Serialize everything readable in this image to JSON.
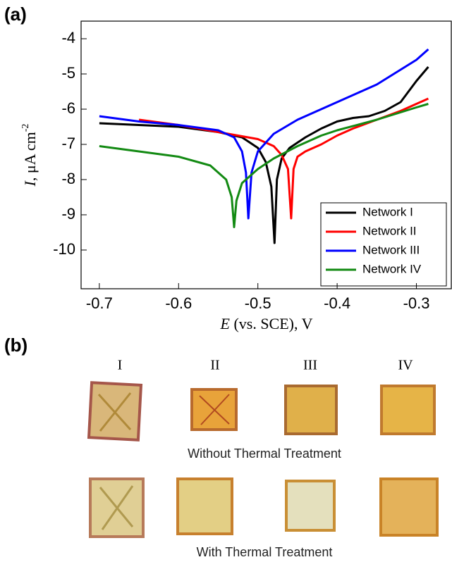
{
  "chart_data": {
    "type": "line",
    "panel_label": "(a)",
    "xlabel_symbol": "E",
    "xlabel": " (vs. SCE), V",
    "ylabel_symbol": "I",
    "ylabel": ", μA cm",
    "ylabel_superscript": "-2",
    "xlim": [
      -0.723,
      -0.256
    ],
    "ylim": [
      -11.1,
      -3.5
    ],
    "xticks": [
      -0.7,
      -0.6,
      -0.5,
      -0.4,
      -0.3
    ],
    "yticks": [
      -10,
      -9,
      -8,
      -7,
      -6,
      -5,
      -4
    ],
    "legend": "lower right",
    "series": [
      {
        "name": "Network I",
        "color": "#000000",
        "x": [
          -0.7,
          -0.6,
          -0.55,
          -0.52,
          -0.5,
          -0.49,
          -0.483,
          -0.479,
          -0.476,
          -0.47,
          -0.46,
          -0.44,
          -0.42,
          -0.4,
          -0.38,
          -0.36,
          -0.34,
          -0.32,
          -0.31,
          -0.3,
          -0.285
        ],
        "values": [
          -6.4,
          -6.5,
          -6.65,
          -6.8,
          -7.1,
          -7.5,
          -8.2,
          -9.8,
          -8.0,
          -7.4,
          -7.1,
          -6.8,
          -6.55,
          -6.35,
          -6.25,
          -6.2,
          -6.05,
          -5.8,
          -5.5,
          -5.2,
          -4.8
        ]
      },
      {
        "name": "Network II",
        "color": "#ff0000",
        "x": [
          -0.65,
          -0.6,
          -0.55,
          -0.5,
          -0.48,
          -0.47,
          -0.462,
          -0.458,
          -0.455,
          -0.45,
          -0.44,
          -0.42,
          -0.4,
          -0.38,
          -0.35,
          -0.32,
          -0.3,
          -0.285
        ],
        "values": [
          -6.3,
          -6.45,
          -6.65,
          -6.85,
          -7.05,
          -7.3,
          -7.7,
          -9.1,
          -7.7,
          -7.35,
          -7.2,
          -7.0,
          -6.75,
          -6.55,
          -6.3,
          -6.05,
          -5.85,
          -5.7
        ]
      },
      {
        "name": "Network III",
        "color": "#0000ff",
        "x": [
          -0.7,
          -0.65,
          -0.6,
          -0.55,
          -0.53,
          -0.52,
          -0.515,
          -0.512,
          -0.508,
          -0.5,
          -0.48,
          -0.45,
          -0.4,
          -0.35,
          -0.3,
          -0.285
        ],
        "values": [
          -6.2,
          -6.35,
          -6.45,
          -6.6,
          -6.8,
          -7.2,
          -7.8,
          -9.1,
          -7.8,
          -7.2,
          -6.7,
          -6.3,
          -5.8,
          -5.3,
          -4.6,
          -4.3
        ]
      },
      {
        "name": "Network IV",
        "color": "#138a13",
        "x": [
          -0.7,
          -0.65,
          -0.6,
          -0.56,
          -0.54,
          -0.533,
          -0.53,
          -0.527,
          -0.52,
          -0.5,
          -0.48,
          -0.45,
          -0.42,
          -0.4,
          -0.35,
          -0.3,
          -0.285
        ],
        "values": [
          -7.05,
          -7.2,
          -7.35,
          -7.6,
          -8.0,
          -8.5,
          -9.35,
          -8.6,
          -8.1,
          -7.7,
          -7.4,
          -7.05,
          -6.75,
          -6.6,
          -6.3,
          -5.95,
          -5.85
        ]
      }
    ]
  },
  "panel_b": {
    "label": "(b)",
    "columns": [
      "I",
      "II",
      "III",
      "IV"
    ],
    "rows": [
      "Without Thermal Treatment",
      "With Thermal Treatment"
    ]
  }
}
